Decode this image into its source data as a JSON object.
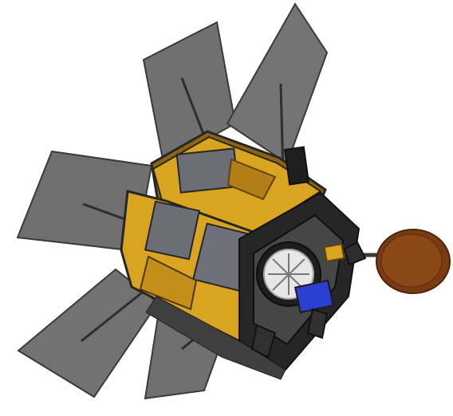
{
  "image": {
    "subject": "satellite-illustration",
    "colors": {
      "panel": "#707070",
      "panel_edge": "#3a3a3a",
      "boom": "#2e2e2e",
      "body_gold": "#d9a520",
      "body_gold_dark": "#8f6410",
      "body_gray": "#6d6d75",
      "frame": "#262626",
      "dish": "#7a3b12",
      "dish_dark": "#4e240a",
      "lens": "#e7e7e7",
      "sensor_blue": "#2b3fd0"
    }
  }
}
